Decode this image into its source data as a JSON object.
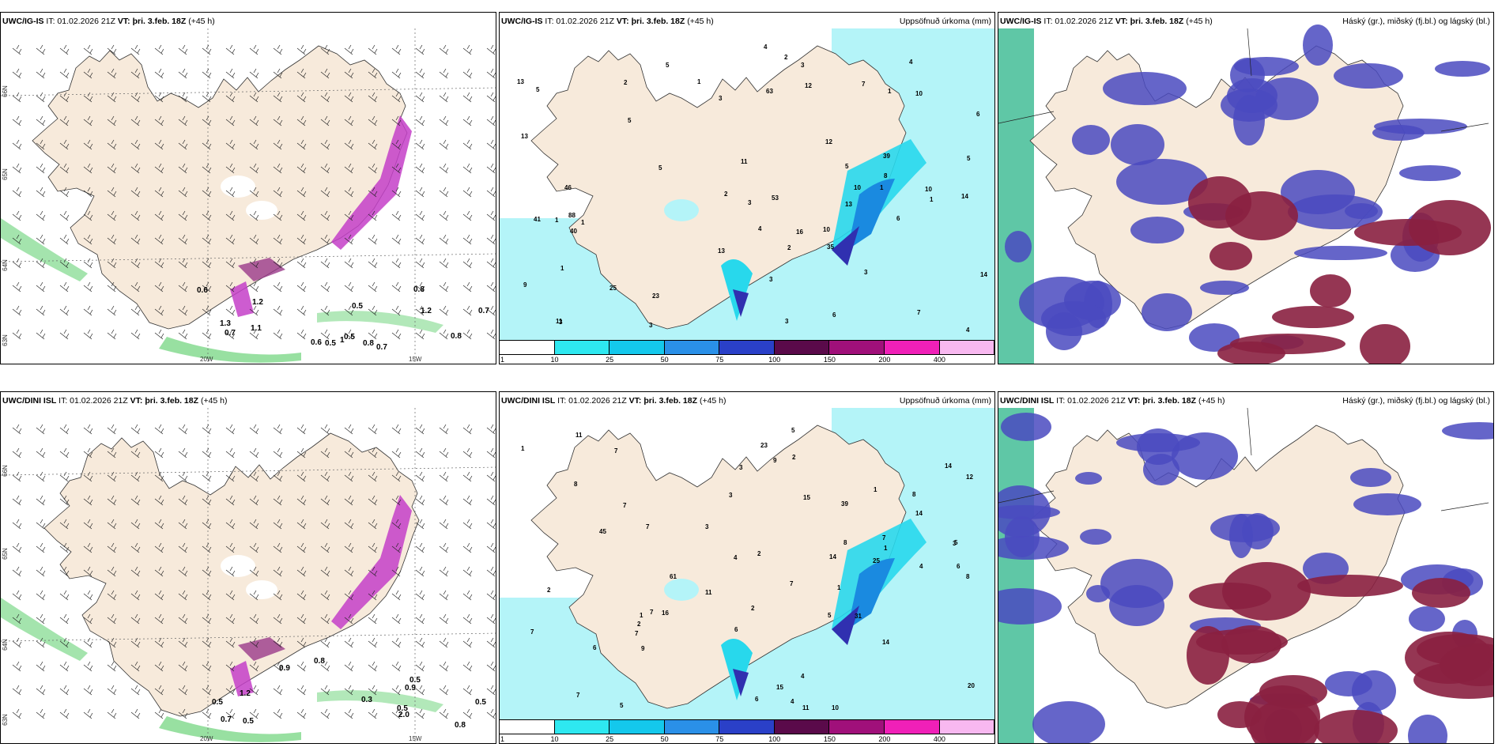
{
  "panels": [
    {
      "id": "p1",
      "model": "UWC/IG-IS",
      "issue": "IT: 01.02.2026 21Z",
      "vt_label": "VT:",
      "vt": "þri. 3.feb. 18Z",
      "lead": "(+45 h)",
      "right_label": "",
      "lat_labels": [
        "66N",
        "65N",
        "64N",
        "63N"
      ],
      "lon_labels": [
        "20W",
        "15W"
      ],
      "wind_values": [
        "0.6",
        "0.5",
        "0.5",
        "0.6",
        "0.7",
        "0.7",
        "1",
        "1.3",
        "1.2",
        "1.2",
        "1.1",
        "0.8",
        "0.5",
        "0.7",
        "0.8",
        "0.8"
      ]
    },
    {
      "id": "p2",
      "model": "UWC/IG-IS",
      "issue": "IT: 01.02.2026 21Z",
      "vt_label": "VT:",
      "vt": "þri. 3.feb. 18Z",
      "lead": "(+45 h)",
      "right_label": "Uppsöfnuð úrkoma (mm)",
      "precip_values": [
        "2",
        "1",
        "6",
        "13",
        "14",
        "1",
        "1",
        "1",
        "1",
        "3",
        "4",
        "35",
        "23",
        "39",
        "41",
        "13",
        "16",
        "10",
        "12",
        "7",
        "13",
        "3",
        "63",
        "88",
        "53",
        "5",
        "2",
        "1",
        "3",
        "40",
        "12",
        "25",
        "46",
        "5",
        "5",
        "4",
        "3",
        "5",
        "10",
        "10",
        "8",
        "13",
        "6",
        "4",
        "3",
        "7",
        "2",
        "5",
        "3",
        "3",
        "4",
        "3",
        "14",
        "10",
        "11",
        "9",
        "6",
        "11",
        "5",
        "2",
        "1"
      ]
    },
    {
      "id": "p3",
      "model": "UWC/IG-IS",
      "issue": "IT: 01.02.2026 21Z",
      "vt_label": "VT:",
      "vt": "þri. 3.feb. 18Z",
      "lead": "(+45 h)",
      "right_label": "Háský (gr.), miðský (fj.bl.) og lágský (bl.)"
    },
    {
      "id": "p4",
      "model": "UWC/DINI ISL",
      "issue": "IT: 01.02.2026 21Z",
      "vt_label": "VT:",
      "vt": "þri. 3.feb. 18Z",
      "lead": "(+45 h)",
      "right_label": "",
      "lat_labels": [
        "66N",
        "65N",
        "64N",
        "63N"
      ],
      "lon_labels": [
        "20W",
        "15W"
      ],
      "wind_values": [
        "0.8",
        "0.5",
        "0.7",
        "2.0",
        "0.5",
        "0.8",
        "0.9",
        "1.2",
        "0.5",
        "0.9",
        "0.3",
        "0.5",
        "0.5"
      ]
    },
    {
      "id": "p5",
      "model": "UWC/DINI ISL",
      "issue": "IT: 01.02.2026 21Z",
      "vt_label": "VT:",
      "vt": "þri. 3.feb. 18Z",
      "lead": "(+45 h)",
      "right_label": "Uppsöfnuð úrkoma (mm)",
      "precip_values": [
        "1",
        "4",
        "1",
        "8",
        "5",
        "10",
        "1",
        "2",
        "14",
        "7",
        "11",
        "7",
        "25",
        "45",
        "8",
        "7",
        "15",
        "61",
        "39",
        "5",
        "14",
        "16",
        "11",
        "5",
        "3",
        "12",
        "31",
        "23",
        "20",
        "15",
        "14",
        "8",
        "6",
        "7",
        "7",
        "7",
        "9",
        "7",
        "7",
        "6",
        "5",
        "4",
        "4",
        "2",
        "2",
        "3",
        "4",
        "1",
        "6",
        "3",
        "8",
        "9",
        "14",
        "11",
        "6",
        "2",
        "7",
        "1",
        "2",
        "3"
      ]
    },
    {
      "id": "p6",
      "model": "UWC/DINI ISL",
      "issue": "IT: 01.02.2026 21Z",
      "vt_label": "VT:",
      "vt": "þri. 3.feb. 18Z",
      "lead": "(+45 h)",
      "right_label": "Háský (gr.), miðský (fj.bl.) og lágský (bl.)"
    }
  ],
  "colorbar": {
    "ticks": [
      "1",
      "10",
      "25",
      "50",
      "75",
      "100",
      "150",
      "200",
      "400"
    ],
    "colors": [
      "#ffffff",
      "#2ee8f0",
      "#14c8ec",
      "#2a90e8",
      "#2a40c8",
      "#5a0a4a",
      "#a0107a",
      "#f020b8",
      "#f8b8f0"
    ]
  },
  "colors": {
    "land": "#f7eadb",
    "precip_light": "#b4f4f8",
    "precip_med": "#28d8ec",
    "precip_dark": "#1a8ae0",
    "precip_deep": "#3030b0",
    "snow_purple": "#c440c8",
    "wind_green": "#7ed88a",
    "cloud_mid": "#4a4ac0",
    "cloud_low": "#8a2040",
    "cloud_high": "#2ab488"
  }
}
